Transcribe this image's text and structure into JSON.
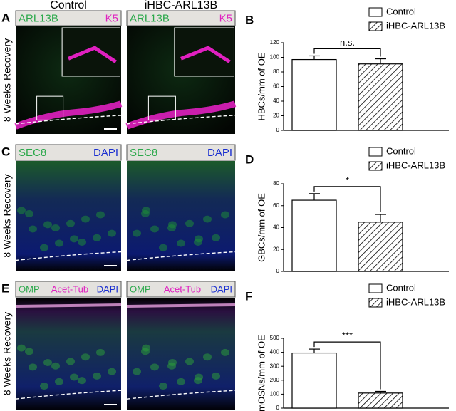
{
  "columns": [
    "Control",
    "iHBC-ARL13B"
  ],
  "rows": [
    {
      "letter": "A",
      "side_label": "8 Weeks Recovery",
      "panels": [
        [
          {
            "text": "ARL13B",
            "color": "#2aa84a"
          },
          {
            "text": "K5",
            "color": "#e020c0"
          }
        ],
        [
          {
            "text": "ARL13B",
            "color": "#2aa84a"
          },
          {
            "text": "K5",
            "color": "#e020c0"
          }
        ]
      ]
    },
    {
      "letter": "C",
      "side_label": "8 Weeks Recovery",
      "panels": [
        [
          {
            "text": "SEC8",
            "color": "#2aa84a"
          },
          {
            "text": "DAPI",
            "color": "#1a2fd0"
          }
        ],
        [
          {
            "text": "SEC8",
            "color": "#2aa84a"
          },
          {
            "text": "DAPI",
            "color": "#1a2fd0"
          }
        ]
      ]
    },
    {
      "letter": "E",
      "side_label": "8 Weeks Recovery",
      "panels": [
        [
          {
            "text": "OMP",
            "color": "#2aa84a"
          },
          {
            "text": "Acet-Tub",
            "color": "#e020c0"
          },
          {
            "text": "DAPI",
            "color": "#1a2fd0"
          }
        ],
        [
          {
            "text": "OMP",
            "color": "#2aa84a"
          },
          {
            "text": "Acet-Tub",
            "color": "#e020c0"
          },
          {
            "text": "DAPI",
            "color": "#1a2fd0"
          }
        ]
      ]
    }
  ],
  "chart_data": [
    {
      "type": "bar",
      "letter": "B",
      "y_label": "HBCs/mm of OE",
      "categories": [
        null
      ],
      "series": [
        {
          "name": "Control",
          "color": "#ffffff",
          "values": [
            97
          ],
          "errors": [
            5
          ]
        },
        {
          "name": "iHBC-ARL13B",
          "color": "#ffffff",
          "hatch": true,
          "values": [
            91
          ],
          "errors": [
            7
          ]
        }
      ],
      "ylim": [
        0,
        120
      ],
      "yticks": [
        0,
        20,
        40,
        60,
        80,
        100,
        120
      ],
      "significance": "n.s."
    },
    {
      "type": "bar",
      "letter": "D",
      "y_label": "GBCs/mm of OE",
      "categories": [
        null
      ],
      "series": [
        {
          "name": "Control",
          "color": "#ffffff",
          "values": [
            65
          ],
          "errors": [
            6
          ]
        },
        {
          "name": "iHBC-ARL13B",
          "color": "#ffffff",
          "hatch": true,
          "values": [
            45
          ],
          "errors": [
            7
          ]
        }
      ],
      "ylim": [
        0,
        80
      ],
      "yticks": [
        0,
        20,
        40,
        60,
        80
      ],
      "significance": "*"
    },
    {
      "type": "bar",
      "letter": "F",
      "y_label": "mOSNs/mm of OE",
      "categories": [
        null
      ],
      "series": [
        {
          "name": "Control",
          "color": "#ffffff",
          "values": [
            395
          ],
          "errors": [
            28
          ]
        },
        {
          "name": "iHBC-ARL13B",
          "color": "#ffffff",
          "hatch": true,
          "values": [
            108
          ],
          "errors": [
            12
          ]
        }
      ],
      "ylim": [
        0,
        500
      ],
      "yticks": [
        0,
        100,
        200,
        300,
        400,
        500
      ],
      "significance": "***"
    }
  ]
}
